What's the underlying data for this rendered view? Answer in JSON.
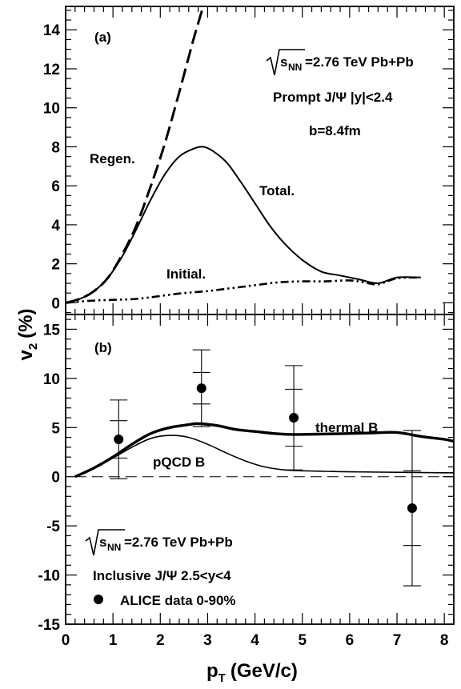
{
  "chart_data": [
    {
      "panel": "a",
      "type": "line",
      "panel_label": "(a)",
      "xlim": [
        0,
        8.2
      ],
      "ylim": [
        -0.6,
        15.2
      ],
      "yticks": [
        "0",
        "2",
        "4",
        "6",
        "8",
        "10",
        "12",
        "14"
      ],
      "ytick_values": [
        0,
        2,
        4,
        6,
        8,
        10,
        12,
        14
      ],
      "annotations": {
        "energy_prefix": "s",
        "energy_sub": "NN",
        "energy_rest": "=2.76 TeV Pb+Pb",
        "rapidity": "Prompt J/Ψ |y|<2.4",
        "impact": "b=8.4fm"
      },
      "series": [
        {
          "name": "Regen.",
          "style": "dashed",
          "x": [
            0,
            0.3,
            0.6,
            0.9,
            1.2,
            1.5,
            1.8,
            2.1,
            2.4,
            2.7,
            2.92
          ],
          "y": [
            0,
            0.2,
            0.6,
            1.3,
            2.5,
            4.0,
            6.0,
            8.2,
            10.8,
            13.5,
            15.3
          ]
        },
        {
          "name": "Total.",
          "style": "solid",
          "x": [
            0,
            0.3,
            0.6,
            0.9,
            1.2,
            1.5,
            1.8,
            2.1,
            2.4,
            2.7,
            2.9,
            3.1,
            3.4,
            3.7,
            4.0,
            4.3,
            4.6,
            5.0,
            5.4,
            5.8,
            6.2,
            6.6,
            7.0,
            7.5
          ],
          "y": [
            0,
            0.2,
            0.6,
            1.3,
            2.4,
            3.8,
            5.3,
            6.6,
            7.5,
            7.9,
            8.0,
            7.8,
            7.2,
            6.2,
            5.1,
            4.0,
            3.1,
            2.2,
            1.6,
            1.4,
            1.2,
            1.0,
            1.3,
            1.3
          ]
        },
        {
          "name": "Initial.",
          "style": "dash-dot-dot",
          "x": [
            0,
            0.5,
            1.0,
            1.5,
            2.0,
            2.5,
            3.0,
            3.5,
            4.0,
            4.5,
            5.0,
            5.5,
            6.0,
            6.3,
            6.6,
            7.0,
            7.5
          ],
          "y": [
            0,
            0.1,
            0.15,
            0.2,
            0.35,
            0.5,
            0.6,
            0.75,
            0.9,
            1.05,
            1.1,
            1.1,
            1.15,
            1.05,
            0.95,
            1.25,
            1.3
          ]
        }
      ],
      "curve_labels": [
        "Regen.",
        "Total.",
        "Initial."
      ]
    },
    {
      "panel": "b",
      "type": "line",
      "panel_label": "(b)",
      "xlim": [
        0,
        8.2
      ],
      "ylim": [
        -15,
        16.5
      ],
      "xlabel_main": "p",
      "xlabel_sub": "T",
      "xlabel_rest": "(GeV/c)",
      "ylabel_main": "v",
      "ylabel_sub": "2",
      "ylabel_rest": "(%)",
      "xticks": [
        "0",
        "1",
        "2",
        "3",
        "4",
        "5",
        "6",
        "7",
        "8"
      ],
      "xtick_values": [
        0,
        1,
        2,
        3,
        4,
        5,
        6,
        7,
        8
      ],
      "yticks": [
        "-15",
        "-10",
        "-5",
        "0",
        "5",
        "10",
        "15"
      ],
      "ytick_values": [
        -15,
        -10,
        -5,
        0,
        5,
        10,
        15
      ],
      "annotations": {
        "energy_prefix": "s",
        "energy_sub": "NN",
        "energy_rest": "=2.76 TeV Pb+Pb",
        "rapidity": "Inclusive J/Ψ 2.5<y<4",
        "legend_data": "ALICE data 0-90%"
      },
      "series": [
        {
          "name": "thermal B",
          "style": "thick-solid",
          "x": [
            0.2,
            0.6,
            1.0,
            1.4,
            1.8,
            2.2,
            2.6,
            2.8,
            3.2,
            3.6,
            4.0,
            4.4,
            4.8,
            5.5,
            6.0,
            6.5,
            7.0,
            7.5,
            8.0,
            8.2
          ],
          "y": [
            0.0,
            0.9,
            2.0,
            3.3,
            4.4,
            5.0,
            5.3,
            5.4,
            5.2,
            4.8,
            4.6,
            4.4,
            4.3,
            4.35,
            4.4,
            4.45,
            4.5,
            4.1,
            3.8,
            3.6
          ]
        },
        {
          "name": "pQCD B",
          "style": "thin-solid",
          "x": [
            0.2,
            0.6,
            1.0,
            1.4,
            1.8,
            2.2,
            2.6,
            3.0,
            3.4,
            3.8,
            4.2,
            4.6,
            5.0,
            5.5,
            6.0,
            7.0,
            8.0,
            8.2
          ],
          "y": [
            0.0,
            0.9,
            1.9,
            3.0,
            3.9,
            4.2,
            4.0,
            3.3,
            2.4,
            1.6,
            1.0,
            0.7,
            0.6,
            0.55,
            0.5,
            0.45,
            0.4,
            0.4
          ]
        }
      ],
      "data_points": [
        {
          "x": 1.12,
          "y": 3.8,
          "stat_err": 1.9,
          "syst_err": 4.0
        },
        {
          "x": 2.87,
          "y": 9.0,
          "stat_err": 1.6,
          "syst_err": 3.9
        },
        {
          "x": 4.82,
          "y": 6.0,
          "stat_err": 2.9,
          "syst_err": 5.3
        },
        {
          "x": 7.32,
          "y": -3.2,
          "stat_err": 3.8,
          "syst_err": 7.9
        }
      ],
      "curve_labels": [
        "thermal B",
        "pQCD B"
      ]
    }
  ]
}
